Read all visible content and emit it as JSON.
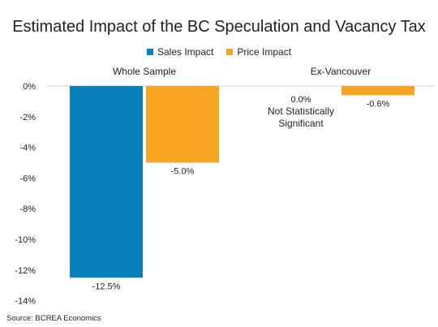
{
  "chart_data": {
    "type": "bar",
    "title": "Estimated Impact of the BC Speculation and Vacancy Tax",
    "xlabel": "",
    "ylabel": "",
    "categories": [
      "Whole Sample",
      "Ex-Vancouver"
    ],
    "series": [
      {
        "name": "Sales Impact",
        "color": "#0a80b8",
        "values": [
          -12.5,
          0.0
        ],
        "labels": [
          "-12.5%",
          "0.0%"
        ]
      },
      {
        "name": "Price Impact",
        "color": "#f6a623",
        "values": [
          -5.0,
          -0.6
        ],
        "labels": [
          "-5.0%",
          "-0.6%"
        ]
      }
    ],
    "yticks": [
      "0%",
      "-2%",
      "-4%",
      "-6%",
      "-8%",
      "-10%",
      "-12%",
      "-14%"
    ],
    "ylim": [
      -14,
      0
    ],
    "grid": false,
    "legend": "top-center",
    "annotations": [
      "Not Statistically",
      "Significant"
    ]
  },
  "source": "Source: BCREA Economics"
}
